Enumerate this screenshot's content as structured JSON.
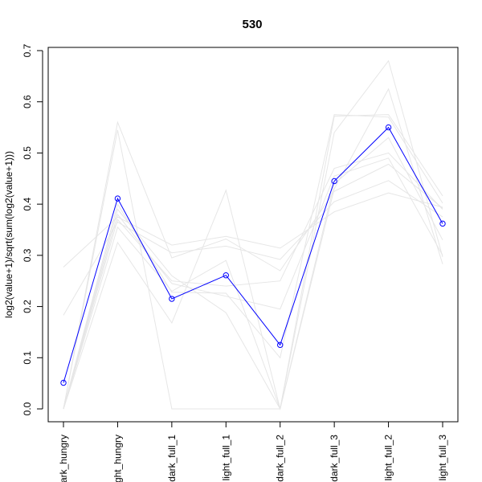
{
  "chart_data": {
    "type": "line",
    "title": "530",
    "xlabel": "",
    "ylabel": "log2(value+1)/sqrt(sum(log2(value+1)))",
    "categories": [
      "dark_hungry",
      "light_hungry",
      "dark_full_1",
      "light_full_1",
      "dark_full_2",
      "dark_full_3",
      "light_full_2",
      "light_full_3"
    ],
    "category_labels_shown": [
      "ark_hungry",
      "ght_hungry",
      "dark_full_1",
      "light_full_1",
      "dark_full_2",
      "dark_full_3",
      "light_full_2",
      "light_full_3"
    ],
    "ylim": [
      -0.02,
      0.71
    ],
    "yticks": [
      0.0,
      0.1,
      0.2,
      0.3,
      0.4,
      0.5,
      0.6,
      0.7
    ],
    "ytick_labels": [
      "0.0",
      "0.1",
      "0.2",
      "0.3",
      "0.4",
      "0.5",
      "0.6",
      "0.7"
    ],
    "grid": false,
    "series": [
      {
        "role": "highlight",
        "color": "#0000ff",
        "marker": "open-circle",
        "values": [
          0.051,
          0.411,
          0.215,
          0.261,
          0.125,
          0.445,
          0.55,
          0.362
        ]
      },
      {
        "role": "background",
        "color": "#e6e6e6",
        "values": [
          0.277,
          0.375,
          0.32,
          0.337,
          0.314,
          0.385,
          0.422,
          0.394
        ]
      },
      {
        "role": "background",
        "color": "#e6e6e6",
        "values": [
          0.183,
          0.365,
          0.305,
          0.318,
          0.292,
          0.405,
          0.446,
          0.375
        ]
      },
      {
        "role": "background",
        "color": "#e6e6e6",
        "values": [
          0.0,
          0.56,
          0.295,
          0.332,
          0.27,
          0.425,
          0.478,
          0.392
        ]
      },
      {
        "role": "background",
        "color": "#e6e6e6",
        "values": [
          0.0,
          0.545,
          0.0,
          0.0,
          0.0,
          0.572,
          0.575,
          0.416
        ]
      },
      {
        "role": "background",
        "color": "#e6e6e6",
        "values": [
          0.0,
          0.325,
          0.168,
          0.427,
          0.0,
          0.54,
          0.68,
          0.297
        ]
      },
      {
        "role": "background",
        "color": "#e6e6e6",
        "values": [
          0.0,
          0.39,
          0.26,
          0.188,
          0.0,
          0.43,
          0.625,
          0.283
        ]
      },
      {
        "role": "background",
        "color": "#e6e6e6",
        "values": [
          0.0,
          0.38,
          0.245,
          0.22,
          0.195,
          0.455,
          0.49,
          0.3
        ]
      },
      {
        "role": "background",
        "color": "#e6e6e6",
        "values": [
          0.0,
          0.4,
          0.228,
          0.226,
          0.1,
          0.575,
          0.57,
          0.402
        ]
      },
      {
        "role": "background",
        "color": "#e6e6e6",
        "values": [
          0.0,
          0.37,
          0.25,
          0.24,
          0.25,
          0.47,
          0.5,
          0.39
        ]
      },
      {
        "role": "background",
        "color": "#e6e6e6",
        "values": [
          0.0,
          0.355,
          0.23,
          0.29,
          0.0,
          0.44,
          0.53,
          0.33
        ]
      }
    ]
  }
}
